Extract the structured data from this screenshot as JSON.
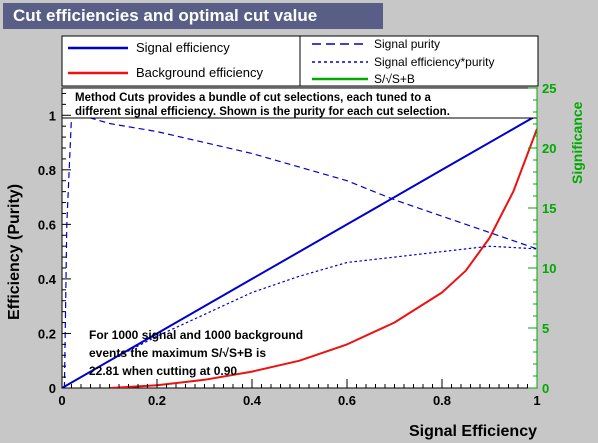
{
  "window": {
    "title": "Cut efficiencies and optimal cut value"
  },
  "colors": {
    "signal": "#0000cc",
    "background": "#ee1111",
    "significance": "#00aa00",
    "purity": "#0000cc",
    "product": "#0000cc"
  },
  "legend": {
    "left": [
      "Signal efficiency",
      "Background efficiency"
    ],
    "right": [
      "Signal purity",
      "Signal efficiency*purity",
      "S/√S+B"
    ]
  },
  "annotations": {
    "method_line1": "Method Cuts provides a bundle of cut selections, each tuned to a",
    "method_line2": "different signal efficiency. Shown is the purity for each cut selection.",
    "result_line1": "For 1000 signal and 1000 background",
    "result_line2": "events the maximum S/√S+B is",
    "result_line3": "22.81 when cutting at  0.90"
  },
  "chart_data": {
    "type": "line",
    "title": "Cut efficiencies and optimal cut value",
    "xlabel": "Signal Efficiency",
    "ylabel": "Efficiency (Purity)",
    "y2label": "Significance",
    "xlim": [
      0,
      1
    ],
    "ylim": [
      0,
      1.1
    ],
    "y2lim": [
      0,
      25
    ],
    "x_ticks": [
      "0",
      "0.2",
      "0.4",
      "0.6",
      "0.8",
      "1"
    ],
    "y_ticks": [
      "0",
      "0.2",
      "0.4",
      "0.6",
      "0.8",
      "1"
    ],
    "y2_ticks": [
      "0",
      "5",
      "10",
      "15",
      "20",
      "25"
    ],
    "grid": false,
    "series": [
      {
        "name": "Signal efficiency",
        "style": "solid",
        "axis": "left",
        "x": [
          0,
          0.2,
          0.4,
          0.6,
          0.8,
          1.0
        ],
        "y": [
          0,
          0.2,
          0.4,
          0.6,
          0.8,
          1.0
        ]
      },
      {
        "name": "Background efficiency",
        "style": "solid",
        "axis": "left",
        "x": [
          0.1,
          0.2,
          0.3,
          0.4,
          0.5,
          0.6,
          0.7,
          0.8,
          0.85,
          0.9,
          0.95,
          1.0
        ],
        "y": [
          0.0,
          0.01,
          0.03,
          0.06,
          0.1,
          0.16,
          0.24,
          0.35,
          0.43,
          0.55,
          0.72,
          0.95
        ]
      },
      {
        "name": "Signal purity",
        "style": "dashed",
        "axis": "left",
        "x": [
          0.005,
          0.01,
          0.02,
          0.05,
          0.1,
          0.2,
          0.3,
          0.4,
          0.5,
          0.6,
          0.7,
          0.8,
          0.9,
          1.0
        ],
        "y": [
          0.0,
          0.6,
          0.995,
          0.995,
          0.97,
          0.94,
          0.9,
          0.86,
          0.81,
          0.76,
          0.69,
          0.63,
          0.57,
          0.51
        ]
      },
      {
        "name": "Signal efficiency*purity",
        "style": "dotted",
        "axis": "left",
        "x": [
          0,
          0.1,
          0.2,
          0.3,
          0.4,
          0.5,
          0.6,
          0.7,
          0.8,
          0.9,
          1.0
        ],
        "y": [
          0,
          0.1,
          0.19,
          0.27,
          0.35,
          0.41,
          0.46,
          0.48,
          0.5,
          0.52,
          0.51
        ]
      }
    ]
  }
}
